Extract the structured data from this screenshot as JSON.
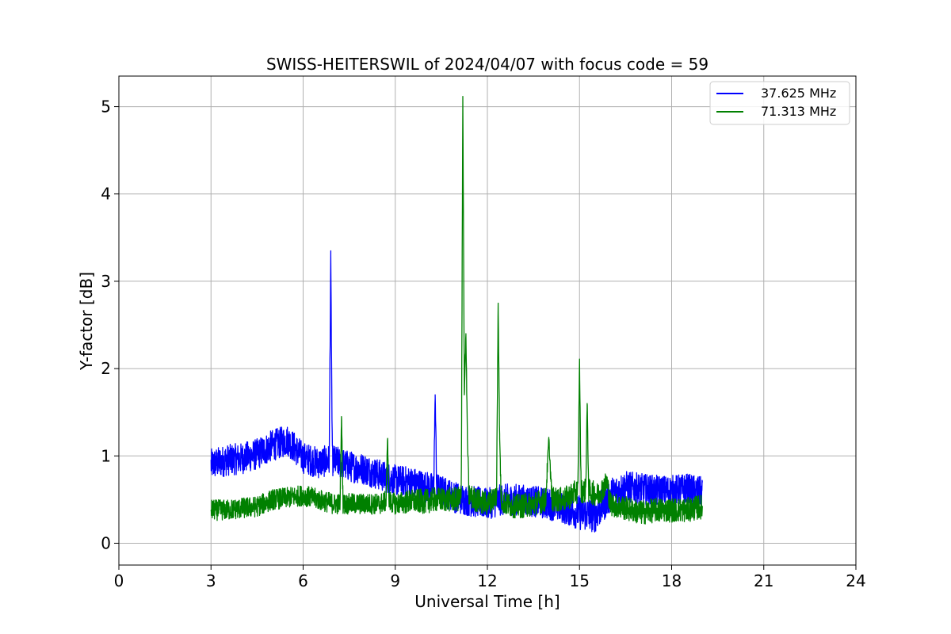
{
  "chart_data": {
    "type": "line",
    "title": "SWISS-HEITERSWIL of 2024/04/07 with focus code = 59",
    "xlabel": "Universal Time [h]",
    "ylabel": "Y-factor [dB]",
    "xlim": [
      0,
      24
    ],
    "ylim": [
      -0.25,
      5.35
    ],
    "xticks": [
      0,
      3,
      6,
      9,
      12,
      15,
      18,
      21,
      24
    ],
    "yticks": [
      0,
      1,
      2,
      3,
      4,
      5
    ],
    "grid": true,
    "legend_position": "top-right",
    "series": [
      {
        "name": "37.625 MHz",
        "color": "#0000ff",
        "x": [
          3.0,
          3.5,
          4.0,
          4.5,
          5.0,
          5.5,
          6.0,
          6.5,
          6.85,
          6.9,
          6.95,
          7.5,
          8.0,
          8.5,
          9.0,
          9.5,
          10.0,
          10.25,
          10.3,
          10.35,
          10.5,
          11.0,
          11.5,
          12.0,
          12.5,
          13.0,
          13.5,
          14.0,
          14.5,
          15.0,
          15.5,
          16.0,
          16.5,
          17.0,
          17.5,
          18.0,
          18.5,
          19.0
        ],
        "y": [
          0.9,
          0.95,
          0.97,
          1.02,
          1.12,
          1.18,
          0.98,
          0.92,
          0.95,
          3.3,
          0.95,
          0.88,
          0.85,
          0.78,
          0.72,
          0.7,
          0.65,
          0.62,
          1.7,
          0.62,
          0.6,
          0.52,
          0.48,
          0.45,
          0.5,
          0.5,
          0.48,
          0.45,
          0.4,
          0.35,
          0.32,
          0.55,
          0.65,
          0.62,
          0.6,
          0.6,
          0.62,
          0.58
        ],
        "band": [
          0.18,
          0.18,
          0.18,
          0.18,
          0.18,
          0.18,
          0.18,
          0.18,
          0.18,
          0.05,
          0.18,
          0.18,
          0.18,
          0.18,
          0.18,
          0.18,
          0.18,
          0.18,
          0.05,
          0.18,
          0.18,
          0.18,
          0.18,
          0.18,
          0.18,
          0.18,
          0.18,
          0.18,
          0.18,
          0.2,
          0.2,
          0.2,
          0.18,
          0.18,
          0.18,
          0.18,
          0.18,
          0.18
        ]
      },
      {
        "name": "71.313 MHz",
        "color": "#008000",
        "x": [
          3.0,
          3.5,
          4.0,
          4.5,
          5.0,
          5.5,
          6.0,
          6.5,
          7.0,
          7.2,
          7.25,
          7.3,
          8.0,
          8.5,
          8.7,
          8.75,
          8.8,
          9.0,
          9.5,
          10.0,
          10.3,
          10.5,
          11.0,
          11.15,
          11.2,
          11.25,
          11.3,
          11.35,
          11.4,
          11.6,
          12.0,
          12.3,
          12.35,
          12.4,
          12.45,
          12.6,
          13.0,
          13.5,
          13.9,
          14.0,
          14.1,
          14.5,
          14.95,
          15.0,
          15.05,
          15.2,
          15.25,
          15.3,
          15.6,
          15.9,
          16.0,
          16.5,
          17.0,
          17.5,
          18.0,
          18.5,
          19.0
        ],
        "y": [
          0.38,
          0.38,
          0.4,
          0.42,
          0.5,
          0.52,
          0.55,
          0.5,
          0.45,
          0.45,
          1.45,
          0.45,
          0.45,
          0.45,
          0.48,
          1.2,
          0.48,
          0.45,
          0.48,
          0.48,
          0.5,
          0.5,
          0.5,
          0.52,
          5.1,
          1.7,
          2.4,
          1.2,
          0.55,
          0.5,
          0.45,
          0.55,
          2.75,
          1.2,
          0.5,
          0.45,
          0.42,
          0.45,
          0.5,
          1.2,
          0.5,
          0.5,
          0.6,
          2.1,
          0.6,
          0.6,
          1.6,
          0.6,
          0.55,
          0.7,
          0.45,
          0.4,
          0.35,
          0.38,
          0.38,
          0.38,
          0.42
        ],
        "band": [
          0.12,
          0.12,
          0.12,
          0.12,
          0.12,
          0.12,
          0.12,
          0.12,
          0.12,
          0.12,
          0.04,
          0.12,
          0.12,
          0.12,
          0.12,
          0.04,
          0.12,
          0.12,
          0.14,
          0.14,
          0.14,
          0.14,
          0.14,
          0.14,
          0.04,
          0.06,
          0.04,
          0.06,
          0.14,
          0.14,
          0.14,
          0.14,
          0.04,
          0.06,
          0.14,
          0.14,
          0.14,
          0.14,
          0.14,
          0.04,
          0.14,
          0.14,
          0.14,
          0.04,
          0.14,
          0.14,
          0.04,
          0.14,
          0.14,
          0.14,
          0.14,
          0.14,
          0.14,
          0.14,
          0.14,
          0.14,
          0.14
        ]
      }
    ]
  }
}
